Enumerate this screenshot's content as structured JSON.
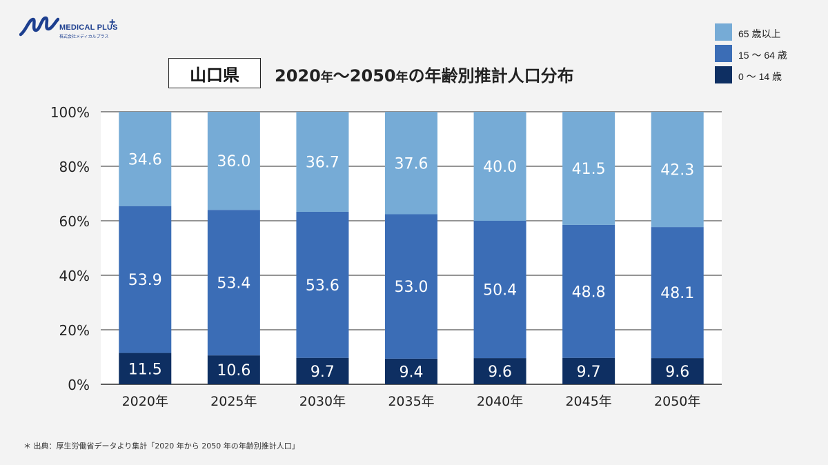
{
  "logo": {
    "brand": "MEDICAL PLUS",
    "plus": "+",
    "company": "株式会社メディカルプラス"
  },
  "header": {
    "region": "山口県",
    "title_year_start": "2020",
    "title_year_start_suffix": "年",
    "title_tilde": "〜",
    "title_year_end": "2050",
    "title_year_end_suffix": "年",
    "title_rest": "の年齢別推計人口分布"
  },
  "legend": [
    {
      "label": "65 歳以上",
      "color": "#76abd6"
    },
    {
      "label": "15 〜 64 歳",
      "color": "#3b6db6"
    },
    {
      "label": "0 〜 14 歳",
      "color": "#0e2f62"
    }
  ],
  "chart_data": {
    "type": "bar",
    "stacked": true,
    "categories": [
      "2020年",
      "2025年",
      "2030年",
      "2035年",
      "2040年",
      "2045年",
      "2050年"
    ],
    "series": [
      {
        "name": "0 〜 14 歳",
        "values": [
          11.5,
          10.6,
          9.7,
          9.4,
          9.6,
          9.7,
          9.6
        ],
        "color": "#0e2f62"
      },
      {
        "name": "15 〜 64 歳",
        "values": [
          53.9,
          53.4,
          53.6,
          53.0,
          50.4,
          48.8,
          48.1
        ],
        "color": "#3b6db6"
      },
      {
        "name": "65 歳以上",
        "values": [
          34.6,
          36.0,
          36.7,
          37.6,
          40.0,
          41.5,
          42.3
        ],
        "color": "#76abd6"
      }
    ],
    "value_labels": [
      [
        "11.5",
        "10.6",
        "9.7",
        "9.4",
        "9.6",
        "9.7",
        "9.6"
      ],
      [
        "53.9",
        "53.4",
        "53.6",
        "53.0",
        "50.4",
        "48.8",
        "48.1"
      ],
      [
        "34.6",
        "36.0",
        "36.7",
        "37.6",
        "40.0",
        "41.5",
        "42.3"
      ]
    ],
    "yticks": [
      "0%",
      "20%",
      "40%",
      "60%",
      "80%",
      "100%"
    ],
    "ylim": [
      0,
      100
    ],
    "grid": true,
    "legend_position": "top-right"
  },
  "footnote": "＊ 出典：厚生労働省データより集計「2020 年から 2050 年の年齢別推計人口」"
}
